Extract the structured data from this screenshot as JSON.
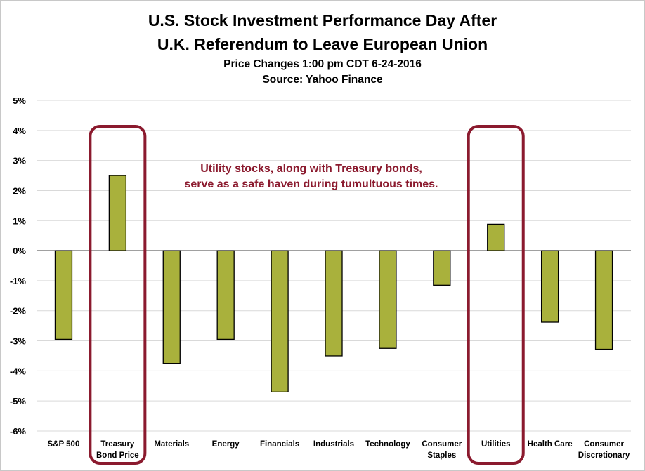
{
  "title_line1": "U.S. Stock Investment Performance Day After",
  "title_line2": "U.K. Referendum to Leave European Union",
  "subtitle_line1": "Price Changes 1:00 pm CDT 6-24-2016",
  "subtitle_line2": "Source: Yahoo Finance",
  "annotation_line1": "Utility stocks, along with Treasury bonds,",
  "annotation_line2": "serve as a safe haven during tumultuous times.",
  "colors": {
    "bar_fill": "#a9b13c",
    "highlight_box": "#8b1a2e",
    "annotation": "#8b1a2e",
    "gridline": "#d9d9d9"
  },
  "chart_data": {
    "type": "bar",
    "categories": [
      [
        "S&P 500"
      ],
      [
        "Treasury",
        "Bond Price"
      ],
      [
        "Materials"
      ],
      [
        "Energy"
      ],
      [
        "Financials"
      ],
      [
        "Industrials"
      ],
      [
        "Technology"
      ],
      [
        "Consumer",
        "Staples"
      ],
      [
        "Utilities"
      ],
      [
        "Health Care"
      ],
      [
        "Consumer",
        "Discretionary"
      ]
    ],
    "values": [
      -2.95,
      2.5,
      -3.75,
      -2.95,
      -4.7,
      -3.5,
      -3.25,
      -1.15,
      0.88,
      -2.38,
      -3.28
    ],
    "highlighted": [
      "Treasury Bond Price",
      "Utilities"
    ],
    "ylim": [
      -6,
      5
    ],
    "yticks": [
      5,
      4,
      3,
      2,
      1,
      0,
      -1,
      -2,
      -3,
      -4,
      -5,
      -6
    ],
    "ytick_labels": [
      "5%",
      "4%",
      "3%",
      "2%",
      "1%",
      "0%",
      "-1%",
      "-2%",
      "-3%",
      "-4%",
      "-5%",
      "-6%"
    ],
    "grid": true
  }
}
